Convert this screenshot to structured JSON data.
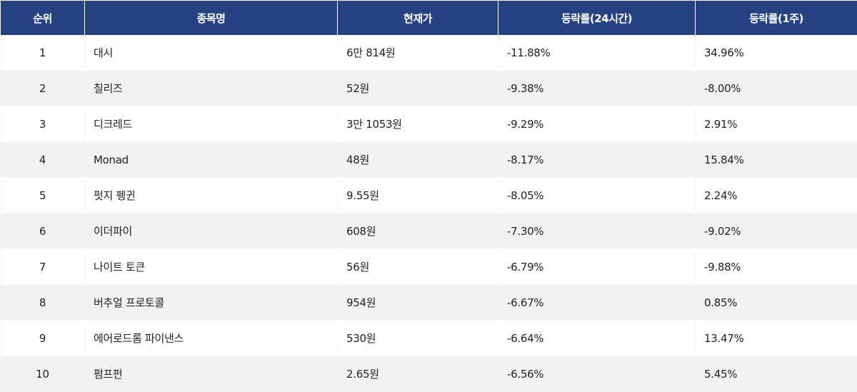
{
  "table": {
    "headers": {
      "rank": "순위",
      "name": "종목명",
      "price": "현재가",
      "change_24h": "등락률(24시간)",
      "change_1w": "등락률(1주)"
    },
    "rows": [
      {
        "rank": "1",
        "name": "대시",
        "price": "6만 814원",
        "change_24h": "-11.88%",
        "change_1w": "34.96%"
      },
      {
        "rank": "2",
        "name": "칠리즈",
        "price": "52원",
        "change_24h": "-9.38%",
        "change_1w": "-8.00%"
      },
      {
        "rank": "3",
        "name": "디크레드",
        "price": "3만 1053원",
        "change_24h": "-9.29%",
        "change_1w": "2.91%"
      },
      {
        "rank": "4",
        "name": "Monad",
        "price": "48원",
        "change_24h": "-8.17%",
        "change_1w": "15.84%"
      },
      {
        "rank": "5",
        "name": "펏지 펭귄",
        "price": "9.55원",
        "change_24h": "-8.05%",
        "change_1w": "2.24%"
      },
      {
        "rank": "6",
        "name": "이더파이",
        "price": "608원",
        "change_24h": "-7.30%",
        "change_1w": "-9.02%"
      },
      {
        "rank": "7",
        "name": "나이트 토큰",
        "price": "56원",
        "change_24h": "-6.79%",
        "change_1w": "-9.88%"
      },
      {
        "rank": "8",
        "name": "버추얼 프로토콜",
        "price": "954원",
        "change_24h": "-6.67%",
        "change_1w": "0.85%"
      },
      {
        "rank": "9",
        "name": "에어로드롬 파이낸스",
        "price": "530원",
        "change_24h": "-6.64%",
        "change_1w": "13.47%"
      },
      {
        "rank": "10",
        "name": "펌프펀",
        "price": "2.65원",
        "change_24h": "-6.56%",
        "change_1w": "5.45%"
      }
    ]
  },
  "colors": {
    "header_bg": "#264283",
    "header_text": "#ffffff",
    "row_alt_bg": "#f2f2f2",
    "text": "#222222"
  }
}
